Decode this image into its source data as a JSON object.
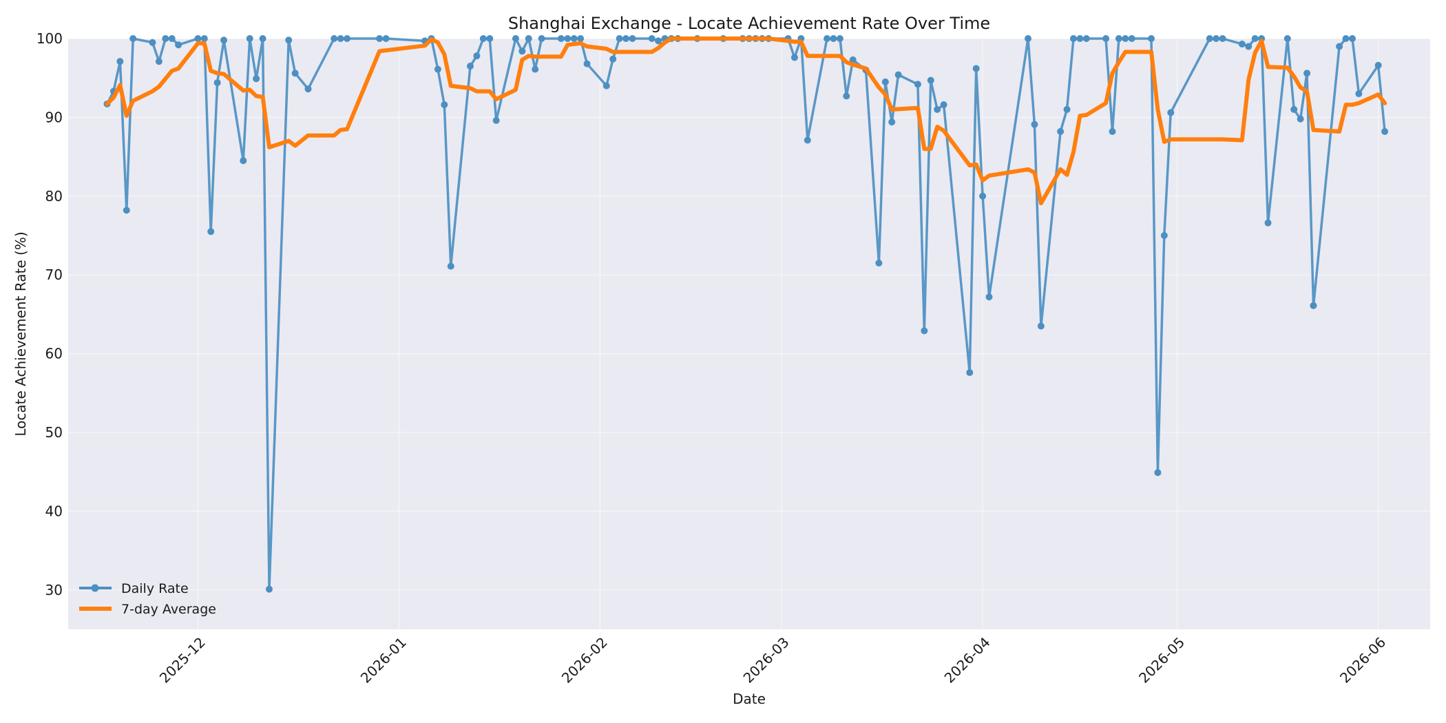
{
  "chart_data": {
    "type": "line",
    "title": "Shanghai Exchange - Locate Achievement Rate Over Time",
    "xlabel": "Date",
    "ylabel": "Locate Achievement Rate (%)",
    "xlim": [
      "2025-11-11",
      "2026-06-09"
    ],
    "ylim": [
      25,
      100
    ],
    "xticks": [
      "2025-12",
      "2026-01",
      "2026-02",
      "2026-03",
      "2026-04",
      "2026-05",
      "2026-06"
    ],
    "xtick_dates": [
      "2025-12-01",
      "2026-01-01",
      "2026-02-01",
      "2026-03-01",
      "2026-04-01",
      "2026-05-01",
      "2026-06-01"
    ],
    "yticks": [
      30,
      40,
      50,
      60,
      70,
      80,
      90,
      100
    ],
    "grid": true,
    "legend_position": "bottom-left",
    "colors": {
      "daily": "#4c8fc2",
      "average": "#ff7f0e"
    },
    "series": [
      {
        "name": "Daily Rate",
        "style": "line-with-markers",
        "points": [
          [
            "2025-11-17",
            91.7
          ],
          [
            "2025-11-18",
            93.3
          ],
          [
            "2025-11-19",
            97.1
          ],
          [
            "2025-11-20",
            78.2
          ],
          [
            "2025-11-21",
            100
          ],
          [
            "2025-11-24",
            99.5
          ],
          [
            "2025-11-25",
            97.1
          ],
          [
            "2025-11-26",
            100
          ],
          [
            "2025-11-27",
            100
          ],
          [
            "2025-11-28",
            99.2
          ],
          [
            "2025-12-01",
            100
          ],
          [
            "2025-12-02",
            100
          ],
          [
            "2025-12-03",
            75.5
          ],
          [
            "2025-12-04",
            94.4
          ],
          [
            "2025-12-05",
            99.8
          ],
          [
            "2025-12-08",
            84.5
          ],
          [
            "2025-12-09",
            100
          ],
          [
            "2025-12-10",
            94.9
          ],
          [
            "2025-12-11",
            100
          ],
          [
            "2025-12-12",
            30.1
          ],
          [
            "2025-12-15",
            99.8
          ],
          [
            "2025-12-16",
            95.6
          ],
          [
            "2025-12-18",
            93.6
          ],
          [
            "2025-12-22",
            100
          ],
          [
            "2025-12-23",
            100
          ],
          [
            "2025-12-24",
            100
          ],
          [
            "2025-12-29",
            100
          ],
          [
            "2025-12-30",
            100
          ],
          [
            "2026-01-05",
            99.7
          ],
          [
            "2026-01-06",
            100
          ],
          [
            "2026-01-07",
            96.1
          ],
          [
            "2026-01-08",
            91.6
          ],
          [
            "2026-01-09",
            71.1
          ],
          [
            "2026-01-12",
            96.5
          ],
          [
            "2026-01-13",
            97.8
          ],
          [
            "2026-01-14",
            100
          ],
          [
            "2026-01-15",
            100
          ],
          [
            "2026-01-16",
            89.6
          ],
          [
            "2026-01-19",
            100
          ],
          [
            "2026-01-20",
            98.4
          ],
          [
            "2026-01-21",
            100
          ],
          [
            "2026-01-22",
            96.1
          ],
          [
            "2026-01-23",
            100
          ],
          [
            "2026-01-26",
            100
          ],
          [
            "2026-01-27",
            100
          ],
          [
            "2026-01-28",
            100
          ],
          [
            "2026-01-29",
            100
          ],
          [
            "2026-01-30",
            96.8
          ],
          [
            "2026-02-02",
            94.0
          ],
          [
            "2026-02-03",
            97.4
          ],
          [
            "2026-02-04",
            100
          ],
          [
            "2026-02-05",
            100
          ],
          [
            "2026-02-06",
            100
          ],
          [
            "2026-02-09",
            100
          ],
          [
            "2026-02-10",
            99.7
          ],
          [
            "2026-02-11",
            100
          ],
          [
            "2026-02-12",
            100
          ],
          [
            "2026-02-13",
            100
          ],
          [
            "2026-02-16",
            100
          ],
          [
            "2026-02-20",
            100
          ],
          [
            "2026-02-23",
            100
          ],
          [
            "2026-02-24",
            100
          ],
          [
            "2026-02-25",
            100
          ],
          [
            "2026-02-26",
            100
          ],
          [
            "2026-02-27",
            100
          ],
          [
            "2026-03-02",
            100
          ],
          [
            "2026-03-03",
            97.6
          ],
          [
            "2026-03-04",
            100
          ],
          [
            "2026-03-05",
            87.1
          ],
          [
            "2026-03-08",
            100
          ],
          [
            "2026-03-09",
            100
          ],
          [
            "2026-03-10",
            100
          ],
          [
            "2026-03-11",
            92.7
          ],
          [
            "2026-03-12",
            97.3
          ],
          [
            "2026-03-14",
            96.0
          ],
          [
            "2026-03-16",
            71.5
          ],
          [
            "2026-03-17",
            94.5
          ],
          [
            "2026-03-18",
            89.4
          ],
          [
            "2026-03-19",
            95.4
          ],
          [
            "2026-03-22",
            94.2
          ],
          [
            "2026-03-23",
            62.9
          ],
          [
            "2026-03-24",
            94.7
          ],
          [
            "2026-03-25",
            91.0
          ],
          [
            "2026-03-26",
            91.6
          ],
          [
            "2026-03-30",
            57.6
          ],
          [
            "2026-03-31",
            96.2
          ],
          [
            "2026-04-01",
            80.0
          ],
          [
            "2026-04-02",
            67.2
          ],
          [
            "2026-04-08",
            100
          ],
          [
            "2026-04-09",
            89.1
          ],
          [
            "2026-04-10",
            63.5
          ],
          [
            "2026-04-13",
            88.2
          ],
          [
            "2026-04-14",
            91.0
          ],
          [
            "2026-04-15",
            100
          ],
          [
            "2026-04-16",
            100
          ],
          [
            "2026-04-17",
            100
          ],
          [
            "2026-04-20",
            100
          ],
          [
            "2026-04-21",
            88.2
          ],
          [
            "2026-04-22",
            100
          ],
          [
            "2026-04-23",
            100
          ],
          [
            "2026-04-24",
            100
          ],
          [
            "2026-04-27",
            100
          ],
          [
            "2026-04-28",
            44.9
          ],
          [
            "2026-04-29",
            75.0
          ],
          [
            "2026-04-30",
            90.6
          ],
          [
            "2026-05-06",
            100
          ],
          [
            "2026-05-07",
            100
          ],
          [
            "2026-05-08",
            100
          ],
          [
            "2026-05-11",
            99.3
          ],
          [
            "2026-05-12",
            99.0
          ],
          [
            "2026-05-13",
            100
          ],
          [
            "2026-05-14",
            100
          ],
          [
            "2026-05-15",
            76.6
          ],
          [
            "2026-05-18",
            100
          ],
          [
            "2026-05-19",
            91.0
          ],
          [
            "2026-05-20",
            89.8
          ],
          [
            "2026-05-21",
            95.6
          ],
          [
            "2026-05-22",
            66.1
          ],
          [
            "2026-05-26",
            99.0
          ],
          [
            "2026-05-27",
            100
          ],
          [
            "2026-05-28",
            100
          ],
          [
            "2026-05-29",
            93.0
          ],
          [
            "2026-06-01",
            96.6
          ],
          [
            "2026-06-02",
            88.2
          ]
        ]
      },
      {
        "name": "7-day Average",
        "style": "line",
        "points": [
          [
            "2025-11-17",
            91.7
          ],
          [
            "2025-11-18",
            92.5
          ],
          [
            "2025-11-19",
            94.1
          ],
          [
            "2025-11-20",
            90.2
          ],
          [
            "2025-11-21",
            92.1
          ],
          [
            "2025-11-24",
            93.3
          ],
          [
            "2025-11-25",
            93.9
          ],
          [
            "2025-11-26",
            94.9
          ],
          [
            "2025-11-27",
            95.9
          ],
          [
            "2025-11-28",
            96.2
          ],
          [
            "2025-12-01",
            99.4
          ],
          [
            "2025-12-02",
            99.4
          ],
          [
            "2025-12-03",
            95.9
          ],
          [
            "2025-12-04",
            95.6
          ],
          [
            "2025-12-05",
            95.5
          ],
          [
            "2025-12-08",
            93.4
          ],
          [
            "2025-12-09",
            93.5
          ],
          [
            "2025-12-10",
            92.7
          ],
          [
            "2025-12-11",
            92.6
          ],
          [
            "2025-12-12",
            86.2
          ],
          [
            "2025-12-15",
            87.0
          ],
          [
            "2025-12-16",
            86.4
          ],
          [
            "2025-12-18",
            87.7
          ],
          [
            "2025-12-22",
            87.7
          ],
          [
            "2025-12-23",
            88.4
          ],
          [
            "2025-12-24",
            88.5
          ],
          [
            "2025-12-29",
            98.4
          ],
          [
            "2026-01-05",
            99.1
          ],
          [
            "2026-01-06",
            99.9
          ],
          [
            "2026-01-07",
            99.5
          ],
          [
            "2026-01-08",
            98.0
          ],
          [
            "2026-01-09",
            94.0
          ],
          [
            "2026-01-12",
            93.7
          ],
          [
            "2026-01-13",
            93.3
          ],
          [
            "2026-01-14",
            93.3
          ],
          [
            "2026-01-15",
            93.3
          ],
          [
            "2026-01-16",
            92.3
          ],
          [
            "2026-01-19",
            93.5
          ],
          [
            "2026-01-20",
            97.3
          ],
          [
            "2026-01-21",
            97.8
          ],
          [
            "2026-01-22",
            97.7
          ],
          [
            "2026-01-23",
            97.7
          ],
          [
            "2026-01-26",
            97.7
          ],
          [
            "2026-01-27",
            99.2
          ],
          [
            "2026-01-28",
            99.3
          ],
          [
            "2026-01-29",
            99.4
          ],
          [
            "2026-01-30",
            99.0
          ],
          [
            "2026-02-02",
            98.7
          ],
          [
            "2026-02-03",
            98.3
          ],
          [
            "2026-02-04",
            98.3
          ],
          [
            "2026-02-09",
            98.3
          ],
          [
            "2026-02-10",
            98.8
          ],
          [
            "2026-02-11",
            99.5
          ],
          [
            "2026-02-12",
            100
          ],
          [
            "2026-02-27",
            100
          ],
          [
            "2026-03-02",
            99.7
          ],
          [
            "2026-03-03",
            99.6
          ],
          [
            "2026-03-04",
            99.6
          ],
          [
            "2026-03-05",
            97.8
          ],
          [
            "2026-03-10",
            97.8
          ],
          [
            "2026-03-11",
            97.0
          ],
          [
            "2026-03-12",
            96.7
          ],
          [
            "2026-03-14",
            96.2
          ],
          [
            "2026-03-16",
            93.8
          ],
          [
            "2026-03-17",
            92.9
          ],
          [
            "2026-03-18",
            91.0
          ],
          [
            "2026-03-22",
            91.2
          ],
          [
            "2026-03-23",
            86.0
          ],
          [
            "2026-03-24",
            86.0
          ],
          [
            "2026-03-25",
            88.8
          ],
          [
            "2026-03-26",
            88.3
          ],
          [
            "2026-03-30",
            83.9
          ],
          [
            "2026-03-31",
            84.0
          ],
          [
            "2026-04-01",
            82.0
          ],
          [
            "2026-04-02",
            82.6
          ],
          [
            "2026-04-08",
            83.4
          ],
          [
            "2026-04-09",
            83.0
          ],
          [
            "2026-04-10",
            79.1
          ],
          [
            "2026-04-13",
            83.4
          ],
          [
            "2026-04-14",
            82.7
          ],
          [
            "2026-04-15",
            85.6
          ],
          [
            "2026-04-16",
            90.2
          ],
          [
            "2026-04-17",
            90.3
          ],
          [
            "2026-04-20",
            91.8
          ],
          [
            "2026-04-21",
            95.6
          ],
          [
            "2026-04-22",
            97.0
          ],
          [
            "2026-04-23",
            98.3
          ],
          [
            "2026-04-27",
            98.3
          ],
          [
            "2026-04-28",
            91.0
          ],
          [
            "2026-04-29",
            86.9
          ],
          [
            "2026-04-30",
            87.2
          ],
          [
            "2026-05-08",
            87.2
          ],
          [
            "2026-05-11",
            87.1
          ],
          [
            "2026-05-12",
            94.8
          ],
          [
            "2026-05-13",
            98.2
          ],
          [
            "2026-05-14",
            99.7
          ],
          [
            "2026-05-15",
            96.4
          ],
          [
            "2026-05-18",
            96.3
          ],
          [
            "2026-05-19",
            95.2
          ],
          [
            "2026-05-20",
            93.8
          ],
          [
            "2026-05-21",
            93.3
          ],
          [
            "2026-05-22",
            88.4
          ],
          [
            "2026-05-26",
            88.2
          ],
          [
            "2026-05-27",
            91.6
          ],
          [
            "2026-05-28",
            91.6
          ],
          [
            "2026-05-29",
            91.8
          ],
          [
            "2026-06-01",
            92.9
          ],
          [
            "2026-06-02",
            91.8
          ]
        ]
      }
    ]
  }
}
